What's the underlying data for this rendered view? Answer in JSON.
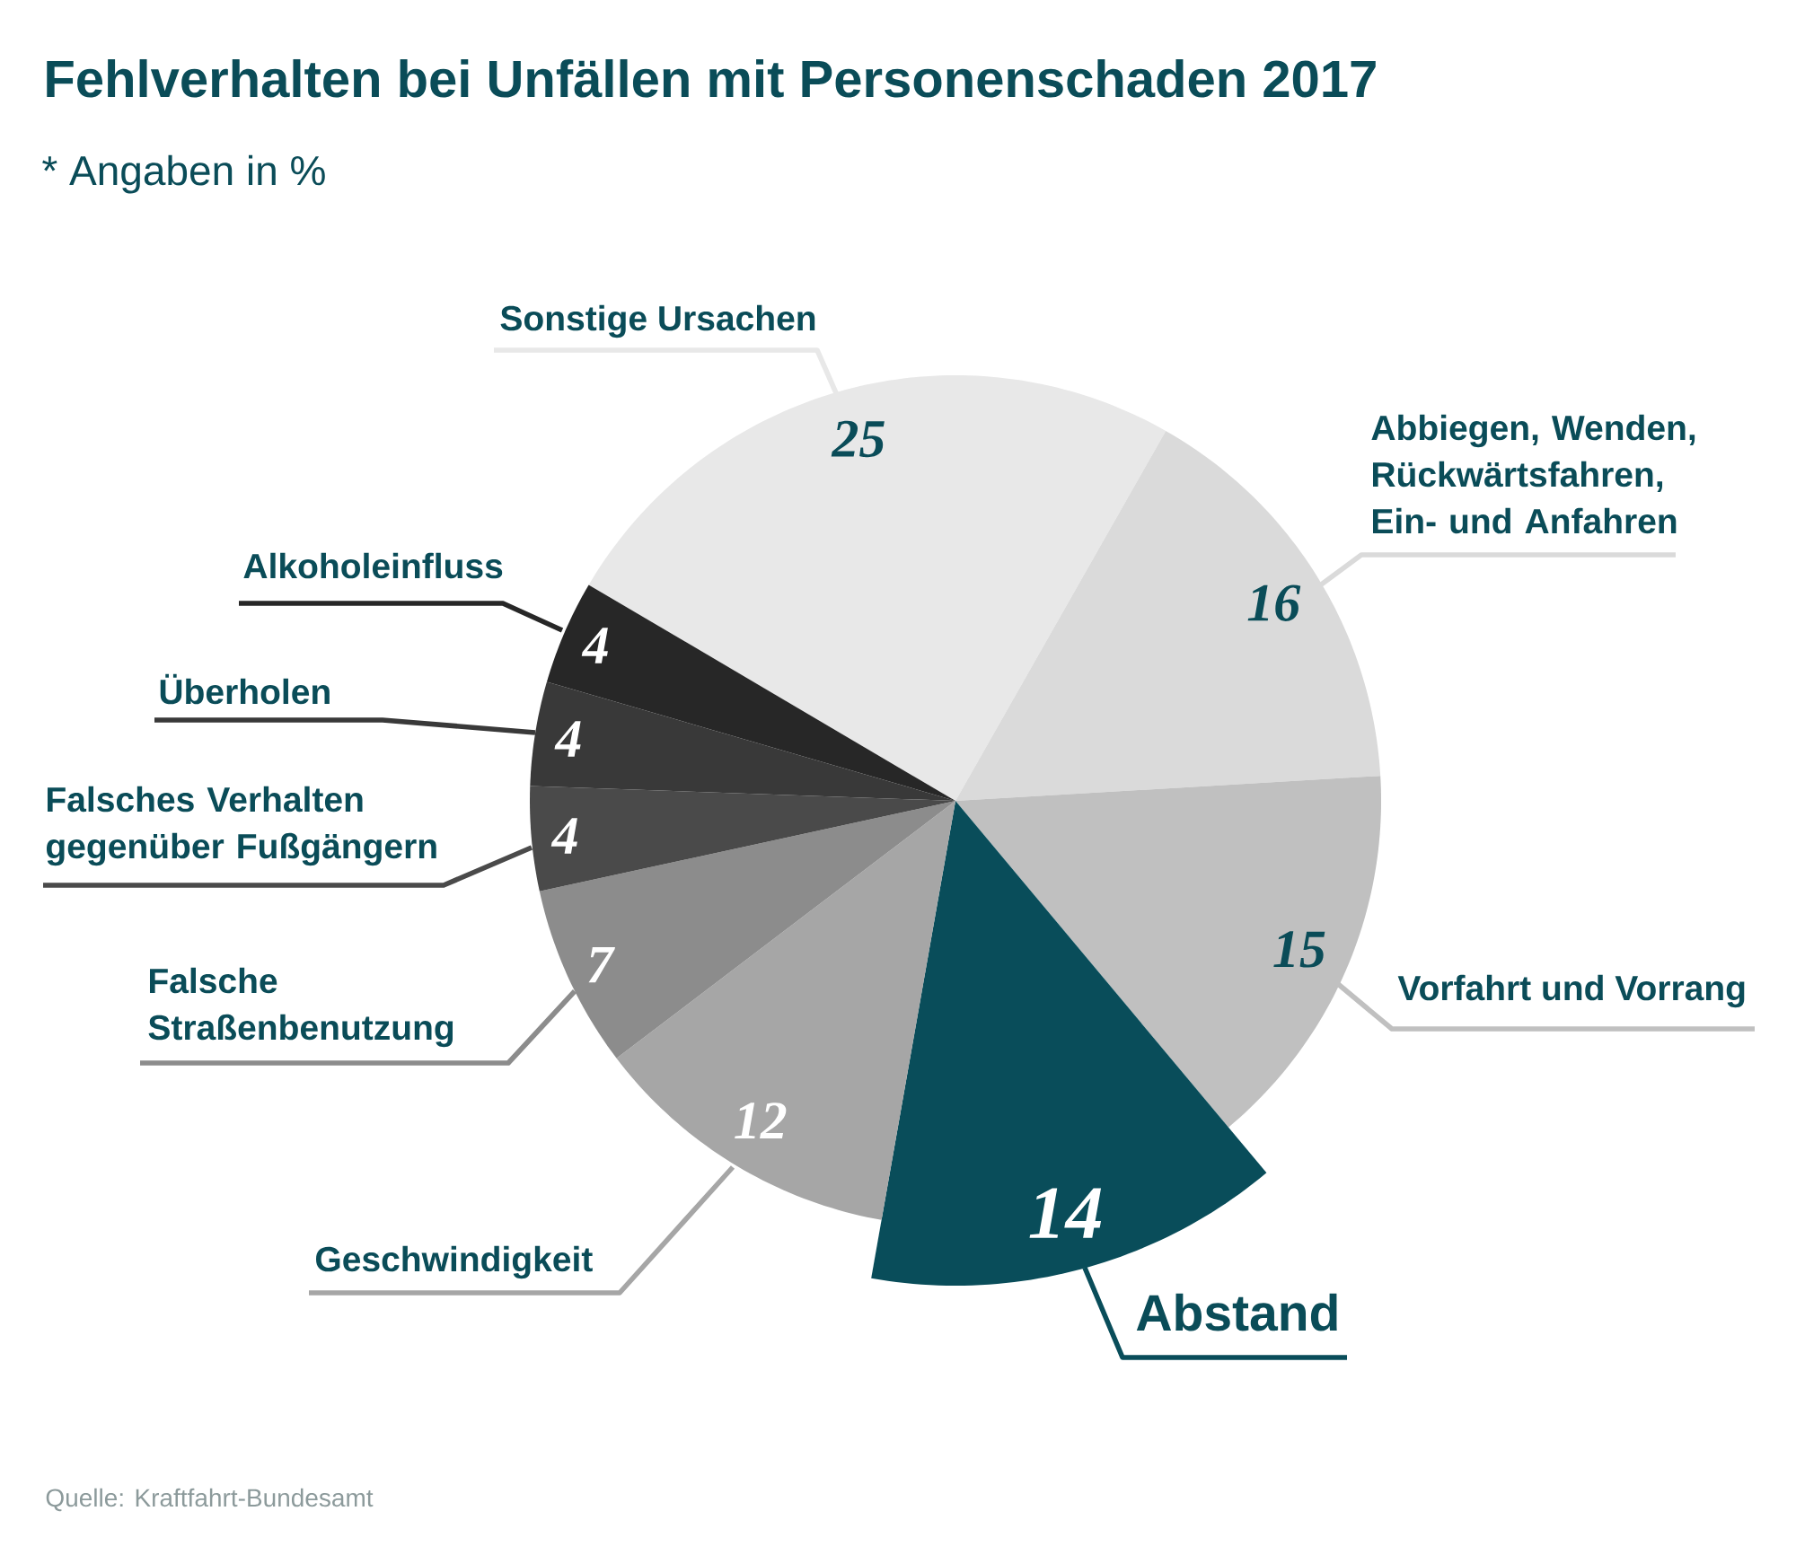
{
  "chart_data": {
    "type": "pie",
    "title": "Fehlverhalten bei Unfällen mit Personenschaden 2017",
    "subtitle": "* Angaben in %",
    "categories": [
      "Sonstige Ursachen",
      "Abbiegen, Wenden, Rückwärtsfahren, Ein- und Anfahren",
      "Vorfahrt und Vorrang",
      "Abstand",
      "Geschwindigkeit",
      "Falsche Straßenbenutzung",
      "Falsches Verhalten gegenüber Fußgängern",
      "Überholen",
      "Alkoholeinfluss"
    ],
    "values": [
      25,
      16,
      15,
      14,
      12,
      7,
      4,
      4,
      4
    ],
    "colors": [
      "#e8e8e8",
      "#dadada",
      "#c0c0c0",
      "#094d5a",
      "#a6a6a6",
      "#8c8c8c",
      "#4a4a4a",
      "#393939",
      "#272727"
    ],
    "data_labels": true,
    "annotations": [
      "Quelle: Kraftfahrt-Bundesamt"
    ]
  }
}
